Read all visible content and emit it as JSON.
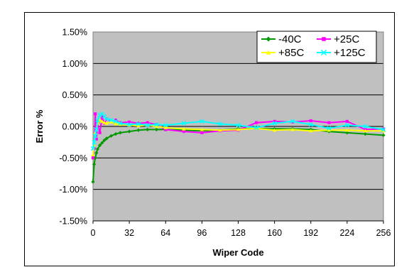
{
  "chart_data": {
    "type": "line",
    "title": "",
    "xlabel": "Wiper Code",
    "ylabel": "Error %",
    "xlim": [
      0,
      256
    ],
    "ylim": [
      -1.5,
      1.5
    ],
    "x_ticks": [
      0,
      32,
      64,
      96,
      128,
      160,
      192,
      224,
      256
    ],
    "x_tick_labels": [
      "0",
      "32",
      "64",
      "96",
      "128",
      "160",
      "192",
      "224",
      "256"
    ],
    "y_ticks": [
      1.5,
      1.0,
      0.5,
      0.0,
      -0.5,
      -1.0,
      -1.5
    ],
    "y_tick_labels": [
      "1.50%",
      "1.00%",
      "0.50%",
      "0.00%",
      "-0.50%",
      "-1.00%",
      "-1.50%"
    ],
    "grid": "horizontal",
    "plot_background": "#c0c0c0",
    "legend_position": "top-right",
    "series": [
      {
        "name": "-40C",
        "color": "#009900",
        "marker": "diamond",
        "x": [
          0,
          1,
          2,
          3,
          4,
          6,
          8,
          10,
          12,
          16,
          20,
          24,
          32,
          40,
          48,
          56,
          64,
          80,
          96,
          112,
          128,
          144,
          160,
          176,
          192,
          208,
          224,
          240,
          256
        ],
        "y": [
          -0.88,
          -0.6,
          -0.5,
          -0.42,
          -0.36,
          -0.3,
          -0.26,
          -0.22,
          -0.19,
          -0.15,
          -0.12,
          -0.1,
          -0.08,
          -0.06,
          -0.05,
          -0.05,
          -0.05,
          -0.06,
          -0.07,
          -0.06,
          -0.04,
          -0.03,
          -0.04,
          -0.04,
          -0.05,
          -0.08,
          -0.1,
          -0.12,
          -0.14
        ]
      },
      {
        "name": "+25C",
        "color": "#ff00ff",
        "marker": "square",
        "x": [
          0,
          1,
          2,
          3,
          4,
          6,
          8,
          10,
          12,
          16,
          20,
          24,
          32,
          40,
          48,
          56,
          64,
          80,
          96,
          112,
          128,
          144,
          160,
          176,
          192,
          208,
          224,
          240,
          256
        ],
        "y": [
          -0.5,
          -0.35,
          0.2,
          -0.2,
          0.05,
          -0.1,
          0.15,
          0.05,
          0.12,
          0.08,
          0.1,
          0.06,
          0.07,
          0.05,
          0.06,
          0.03,
          -0.05,
          -0.08,
          -0.1,
          -0.07,
          -0.06,
          0.06,
          0.08,
          0.07,
          0.09,
          0.06,
          0.08,
          -0.05,
          -0.04
        ]
      },
      {
        "name": "+85C",
        "color": "#ffff00",
        "marker": "triangle",
        "x": [
          0,
          1,
          2,
          3,
          4,
          6,
          8,
          10,
          12,
          16,
          20,
          24,
          32,
          40,
          48,
          56,
          64,
          80,
          96,
          112,
          128,
          144,
          160,
          176,
          192,
          208,
          224,
          240,
          256
        ],
        "y": [
          -0.45,
          -0.3,
          -0.1,
          -0.05,
          0.05,
          0.1,
          0.08,
          0.06,
          0.05,
          0.07,
          0.04,
          0.03,
          0.02,
          0.01,
          0.02,
          0.0,
          -0.02,
          -0.04,
          -0.05,
          -0.06,
          -0.05,
          -0.03,
          -0.06,
          -0.05,
          -0.07,
          -0.06,
          -0.06,
          -0.07,
          -0.07
        ]
      },
      {
        "name": "+125C",
        "color": "#00ffff",
        "marker": "x",
        "x": [
          0,
          1,
          2,
          3,
          4,
          6,
          8,
          10,
          12,
          16,
          20,
          24,
          32,
          40,
          48,
          56,
          64,
          80,
          96,
          112,
          128,
          144,
          160,
          176,
          192,
          208,
          224,
          240,
          256
        ],
        "y": [
          -0.35,
          -0.25,
          -0.15,
          -0.05,
          0.1,
          0.18,
          0.2,
          0.16,
          0.12,
          0.1,
          0.08,
          0.05,
          0.03,
          0.04,
          0.02,
          0.03,
          0.02,
          0.05,
          0.08,
          0.04,
          0.02,
          -0.02,
          0.05,
          0.08,
          0.03,
          -0.03,
          0.02,
          0.0,
          -0.05
        ]
      }
    ]
  }
}
